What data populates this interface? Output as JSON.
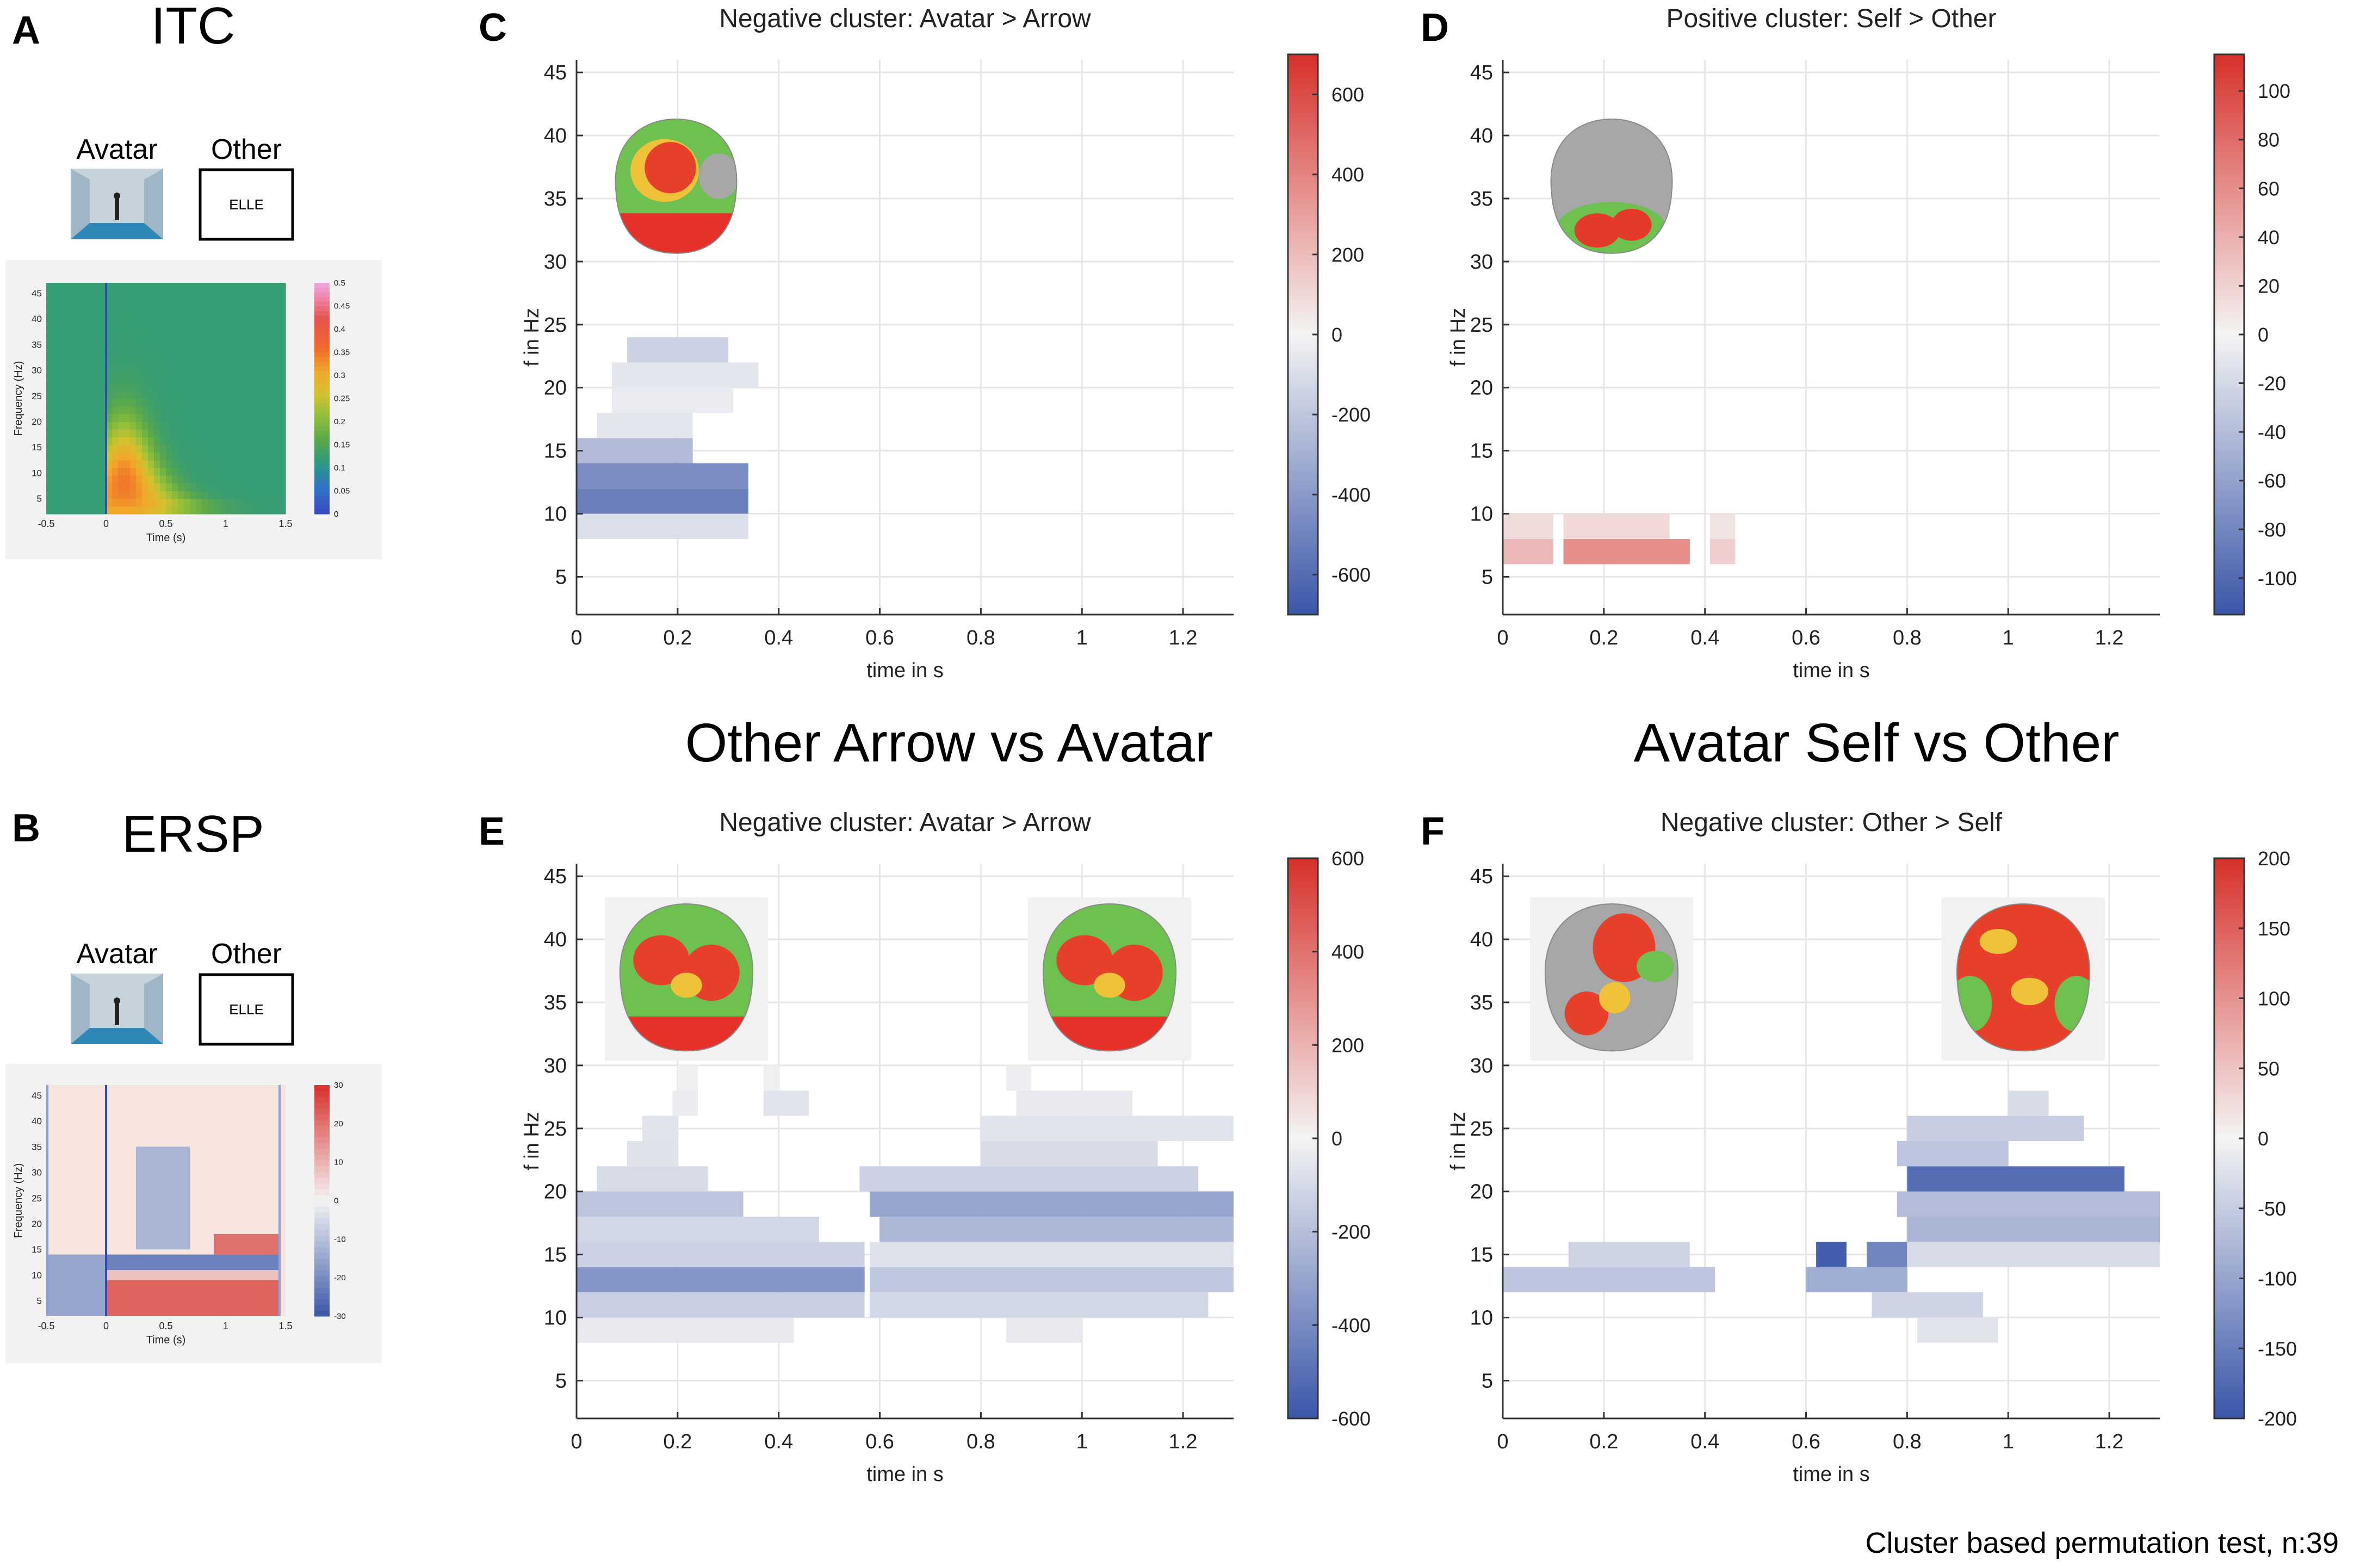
{
  "panels": {
    "A": {
      "letter": "A",
      "title": "ITC",
      "avatar_label": "Avatar",
      "other_label": "Other",
      "other_box_text": "ELLE"
    },
    "B": {
      "letter": "B",
      "title": "ERSP",
      "avatar_label": "Avatar",
      "other_label": "Other",
      "other_box_text": "ELLE"
    },
    "C": {
      "letter": "C"
    },
    "D": {
      "letter": "D"
    },
    "E": {
      "letter": "E"
    },
    "F": {
      "letter": "F"
    }
  },
  "section_titles": {
    "left": "Other Arrow vs Avatar",
    "right": "Avatar Self vs Other"
  },
  "footer": "Cluster based permutation test, n:39",
  "colors": {
    "red": "#d7302a",
    "blue": "#3a56a8",
    "white": "#f4f4f4",
    "green": "#3e9a4a",
    "grid": "#e6e6e6",
    "scalp_gray": "#a7a7a7"
  },
  "chart_data": [
    {
      "id": "A",
      "type": "heatmap",
      "measure": "ITC",
      "xlabel": "Time (s)",
      "ylabel": "Frequency (Hz)",
      "x_ticks": [
        "-0.5",
        "0",
        "0.5",
        "1",
        "1.5"
      ],
      "xlim": [
        -0.5,
        1.5
      ],
      "y_ticks": [
        "5",
        "10",
        "15",
        "20",
        "25",
        "30",
        "35",
        "40",
        "45"
      ],
      "ylim": [
        2,
        47
      ],
      "colorbar": {
        "min": 0,
        "max": 0.5,
        "ticks": [
          "0",
          "0.05",
          "0.1",
          "0.15",
          "0.2",
          "0.25",
          "0.3",
          "0.35",
          "0.4",
          "0.45",
          "0.5"
        ]
      },
      "description_values": {
        "peak_itc": 0.35,
        "peak_time_s": 0.15,
        "peak_freq_hz": 8
      }
    },
    {
      "id": "B",
      "type": "heatmap",
      "measure": "ERSP",
      "xlabel": "Time (s)",
      "ylabel": "Frequency (Hz)",
      "x_ticks": [
        "-0.5",
        "0",
        "0.5",
        "1",
        "1.5"
      ],
      "xlim": [
        -0.5,
        1.5
      ],
      "y_ticks": [
        "5",
        "10",
        "15",
        "20",
        "25",
        "30",
        "35",
        "40",
        "45"
      ],
      "ylim": [
        2,
        47
      ],
      "colorbar": {
        "min": -30,
        "max": 30,
        "ticks": [
          "-30",
          "-20",
          "-10",
          "0",
          "10",
          "20",
          "30"
        ]
      },
      "bands": [
        {
          "t0": -0.5,
          "t1": 0.0,
          "f0": 2,
          "f1": 14,
          "value": -15
        },
        {
          "t0": 0.0,
          "t1": 1.45,
          "f0": 2,
          "f1": 9,
          "value": 22
        },
        {
          "t0": 0.0,
          "t1": 1.45,
          "f0": 9,
          "f1": 11,
          "value": 8
        },
        {
          "t0": 0.0,
          "t1": 1.45,
          "f0": 11,
          "f1": 14,
          "value": -22
        },
        {
          "t0": 0.9,
          "t1": 1.45,
          "f0": 14,
          "f1": 18,
          "value": 20
        },
        {
          "t0": 0.25,
          "t1": 0.7,
          "f0": 15,
          "f1": 35,
          "value": -12
        }
      ]
    },
    {
      "id": "C",
      "type": "heatmap",
      "title": "Negative cluster: Avatar > Arrow",
      "xlabel": "time in s",
      "ylabel": "f in Hz",
      "x_ticks": [
        "0",
        "0.2",
        "0.4",
        "0.6",
        "0.8",
        "1",
        "1.2"
      ],
      "xlim": [
        0,
        1.3
      ],
      "y_ticks": [
        "5",
        "10",
        "15",
        "20",
        "25",
        "30",
        "35",
        "40",
        "45"
      ],
      "ylim": [
        2,
        46
      ],
      "colorbar": {
        "min": -700,
        "max": 700,
        "ticks": [
          "-600",
          "-400",
          "-200",
          "0",
          "200",
          "400",
          "600"
        ]
      },
      "cells": [
        {
          "t0": 0.0,
          "t1": 0.34,
          "f0": 8,
          "f1": 10,
          "v": -90
        },
        {
          "t0": 0.0,
          "t1": 0.34,
          "f0": 10,
          "f1": 12,
          "v": -520
        },
        {
          "t0": 0.0,
          "t1": 0.34,
          "f0": 12,
          "f1": 14,
          "v": -460
        },
        {
          "t0": 0.0,
          "t1": 0.23,
          "f0": 14,
          "f1": 16,
          "v": -250
        },
        {
          "t0": 0.04,
          "t1": 0.23,
          "f0": 16,
          "f1": 18,
          "v": -60
        },
        {
          "t0": 0.07,
          "t1": 0.31,
          "f0": 18,
          "f1": 20,
          "v": -40
        },
        {
          "t0": 0.07,
          "t1": 0.36,
          "f0": 20,
          "f1": 22,
          "v": -60
        },
        {
          "t0": 0.1,
          "t1": 0.3,
          "f0": 22,
          "f1": 24,
          "v": -150
        }
      ]
    },
    {
      "id": "D",
      "type": "heatmap",
      "title": "Positive cluster: Self > Other",
      "xlabel": "time in s",
      "ylabel": "f in Hz",
      "x_ticks": [
        "0",
        "0.2",
        "0.4",
        "0.6",
        "0.8",
        "1",
        "1.2"
      ],
      "xlim": [
        0,
        1.3
      ],
      "y_ticks": [
        "5",
        "10",
        "15",
        "20",
        "25",
        "30",
        "35",
        "40",
        "45"
      ],
      "ylim": [
        2,
        46
      ],
      "colorbar": {
        "min": -115,
        "max": 115,
        "ticks": [
          "-100",
          "-80",
          "-60",
          "-40",
          "-20",
          "0",
          "20",
          "40",
          "60",
          "80",
          "100"
        ]
      },
      "cells": [
        {
          "t0": 0.0,
          "t1": 0.1,
          "f0": 6,
          "f1": 8,
          "v": 35
        },
        {
          "t0": 0.0,
          "t1": 0.1,
          "f0": 8,
          "f1": 10,
          "v": 14
        },
        {
          "t0": 0.12,
          "t1": 0.37,
          "f0": 6,
          "f1": 8,
          "v": 60
        },
        {
          "t0": 0.12,
          "t1": 0.33,
          "f0": 8,
          "f1": 10,
          "v": 16
        },
        {
          "t0": 0.41,
          "t1": 0.46,
          "f0": 6,
          "f1": 8,
          "v": 22
        },
        {
          "t0": 0.41,
          "t1": 0.46,
          "f0": 8,
          "f1": 10,
          "v": 10
        }
      ]
    },
    {
      "id": "E",
      "type": "heatmap",
      "title": "Negative cluster: Avatar > Arrow",
      "xlabel": "time in s",
      "ylabel": "f in Hz",
      "x_ticks": [
        "0",
        "0.2",
        "0.4",
        "0.6",
        "0.8",
        "1",
        "1.2"
      ],
      "xlim": [
        0,
        1.3
      ],
      "y_ticks": [
        "5",
        "10",
        "15",
        "20",
        "25",
        "30",
        "35",
        "40",
        "45"
      ],
      "ylim": [
        2,
        46
      ],
      "colorbar": {
        "min": -600,
        "max": 600,
        "ticks": [
          "-600",
          "-400",
          "-200",
          "0",
          "200",
          "400",
          "600"
        ]
      },
      "cells": [
        {
          "t0": 0.0,
          "t1": 0.43,
          "f0": 8,
          "f1": 10,
          "v": -40
        },
        {
          "t0": 0.0,
          "t1": 0.57,
          "f0": 10,
          "f1": 12,
          "v": -140
        },
        {
          "t0": 0.0,
          "t1": 0.57,
          "f0": 12,
          "f1": 14,
          "v": -360
        },
        {
          "t0": 0.0,
          "t1": 0.57,
          "f0": 14,
          "f1": 16,
          "v": -130
        },
        {
          "t0": 0.0,
          "t1": 0.48,
          "f0": 16,
          "f1": 18,
          "v": -110
        },
        {
          "t0": 0.0,
          "t1": 0.33,
          "f0": 18,
          "f1": 20,
          "v": -180
        },
        {
          "t0": 0.04,
          "t1": 0.26,
          "f0": 20,
          "f1": 22,
          "v": -90
        },
        {
          "t0": 0.1,
          "t1": 0.2,
          "f0": 22,
          "f1": 24,
          "v": -70
        },
        {
          "t0": 0.13,
          "t1": 0.2,
          "f0": 24,
          "f1": 26,
          "v": -60
        },
        {
          "t0": 0.19,
          "t1": 0.24,
          "f0": 26,
          "f1": 28,
          "v": -30
        },
        {
          "t0": 0.37,
          "t1": 0.46,
          "f0": 26,
          "f1": 28,
          "v": -60
        },
        {
          "t0": 0.2,
          "t1": 0.24,
          "f0": 28,
          "f1": 30,
          "v": -20
        },
        {
          "t0": 0.37,
          "t1": 0.4,
          "f0": 28,
          "f1": 30,
          "v": -20
        },
        {
          "t0": 0.58,
          "t1": 1.25,
          "f0": 10,
          "f1": 12,
          "v": -110
        },
        {
          "t0": 0.85,
          "t1": 1.0,
          "f0": 8,
          "f1": 10,
          "v": -40
        },
        {
          "t0": 0.58,
          "t1": 1.3,
          "f0": 12,
          "f1": 14,
          "v": -170
        },
        {
          "t0": 0.58,
          "t1": 1.3,
          "f0": 14,
          "f1": 16,
          "v": -70
        },
        {
          "t0": 0.6,
          "t1": 1.3,
          "f0": 16,
          "f1": 18,
          "v": -230
        },
        {
          "t0": 0.58,
          "t1": 1.3,
          "f0": 18,
          "f1": 20,
          "v": -300
        },
        {
          "t0": 0.56,
          "t1": 1.23,
          "f0": 20,
          "f1": 22,
          "v": -130
        },
        {
          "t0": 0.8,
          "t1": 1.15,
          "f0": 22,
          "f1": 24,
          "v": -90
        },
        {
          "t0": 0.8,
          "t1": 1.3,
          "f0": 24,
          "f1": 26,
          "v": -60
        },
        {
          "t0": 0.87,
          "t1": 1.1,
          "f0": 26,
          "f1": 28,
          "v": -40
        },
        {
          "t0": 0.85,
          "t1": 0.9,
          "f0": 28,
          "f1": 30,
          "v": -25
        }
      ]
    },
    {
      "id": "F",
      "type": "heatmap",
      "title": "Negative cluster: Other > Self",
      "xlabel": "time in s",
      "ylabel": "f in Hz",
      "x_ticks": [
        "0",
        "0.2",
        "0.4",
        "0.6",
        "0.8",
        "1",
        "1.2"
      ],
      "xlim": [
        0,
        1.3
      ],
      "y_ticks": [
        "5",
        "10",
        "15",
        "20",
        "25",
        "30",
        "35",
        "40",
        "45"
      ],
      "ylim": [
        2,
        46
      ],
      "colorbar": {
        "min": -200,
        "max": 200,
        "ticks": [
          "-200",
          "-150",
          "-100",
          "-50",
          "0",
          "50",
          "100",
          "150",
          "200"
        ]
      },
      "cells": [
        {
          "t0": 0.0,
          "t1": 0.42,
          "f0": 12,
          "f1": 14,
          "v": -60
        },
        {
          "t0": 0.13,
          "t1": 0.37,
          "f0": 14,
          "f1": 16,
          "v": -40
        },
        {
          "t0": 0.6,
          "t1": 0.8,
          "f0": 12,
          "f1": 14,
          "v": -90
        },
        {
          "t0": 0.62,
          "t1": 0.68,
          "f0": 14,
          "f1": 16,
          "v": -190
        },
        {
          "t0": 0.72,
          "t1": 0.8,
          "f0": 14,
          "f1": 16,
          "v": -140
        },
        {
          "t0": 0.73,
          "t1": 0.95,
          "f0": 10,
          "f1": 12,
          "v": -40
        },
        {
          "t0": 0.82,
          "t1": 0.98,
          "f0": 8,
          "f1": 10,
          "v": -20
        },
        {
          "t0": 0.8,
          "t1": 1.3,
          "f0": 14,
          "f1": 16,
          "v": -30
        },
        {
          "t0": 0.8,
          "t1": 1.3,
          "f0": 16,
          "f1": 18,
          "v": -80
        },
        {
          "t0": 0.78,
          "t1": 1.3,
          "f0": 18,
          "f1": 20,
          "v": -70
        },
        {
          "t0": 0.8,
          "t1": 1.23,
          "f0": 20,
          "f1": 22,
          "v": -170
        },
        {
          "t0": 0.78,
          "t1": 1.0,
          "f0": 22,
          "f1": 24,
          "v": -60
        },
        {
          "t0": 0.8,
          "t1": 1.15,
          "f0": 24,
          "f1": 26,
          "v": -50
        },
        {
          "t0": 1.0,
          "t1": 1.08,
          "f0": 26,
          "f1": 28,
          "v": -30
        }
      ]
    }
  ],
  "inset_labels": {
    "topomap": "topographic map"
  }
}
